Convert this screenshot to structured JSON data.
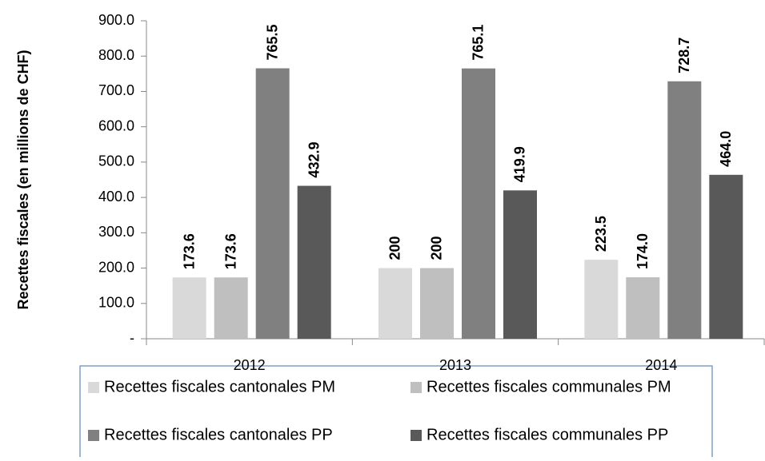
{
  "chart_data": {
    "type": "bar",
    "y_label": "Recettes fiscales (en millions de CHF)",
    "categories": [
      "2012",
      "2013",
      "2014"
    ],
    "series": [
      {
        "name": "Recettes fiscales cantonales PM",
        "color": "#d9d9d9",
        "values": [
          173.6,
          200,
          223.5
        ],
        "value_labels": [
          "173.6",
          "200",
          "223.5"
        ]
      },
      {
        "name": "Recettes fiscales communales PM",
        "color": "#bfbfbf",
        "values": [
          173.6,
          200,
          174.0
        ],
        "value_labels": [
          "173.6",
          "200",
          "174.0"
        ]
      },
      {
        "name": "Recettes fiscales cantonales PP",
        "color": "#808080",
        "values": [
          765.5,
          765.1,
          728.7
        ],
        "value_labels": [
          "765.5",
          "765.1",
          "728.7"
        ]
      },
      {
        "name": "Recettes fiscales communales PP",
        "color": "#595959",
        "values": [
          432.9,
          419.9,
          464.0
        ],
        "value_labels": [
          "432.9",
          "419.9",
          "464.0"
        ]
      }
    ],
    "ylim": [
      0,
      900
    ],
    "yticks": [
      {
        "value": 0,
        "label": "-"
      },
      {
        "value": 100,
        "label": "100.0"
      },
      {
        "value": 200,
        "label": "200.0"
      },
      {
        "value": 300,
        "label": "300.0"
      },
      {
        "value": 400,
        "label": "400.0"
      },
      {
        "value": 500,
        "label": "500.0"
      },
      {
        "value": 600,
        "label": "600.0"
      },
      {
        "value": 700,
        "label": "700.0"
      },
      {
        "value": 800,
        "label": "800.0"
      },
      {
        "value": 900,
        "label": "900.0"
      }
    ],
    "grid": false,
    "legend": "bottom"
  }
}
